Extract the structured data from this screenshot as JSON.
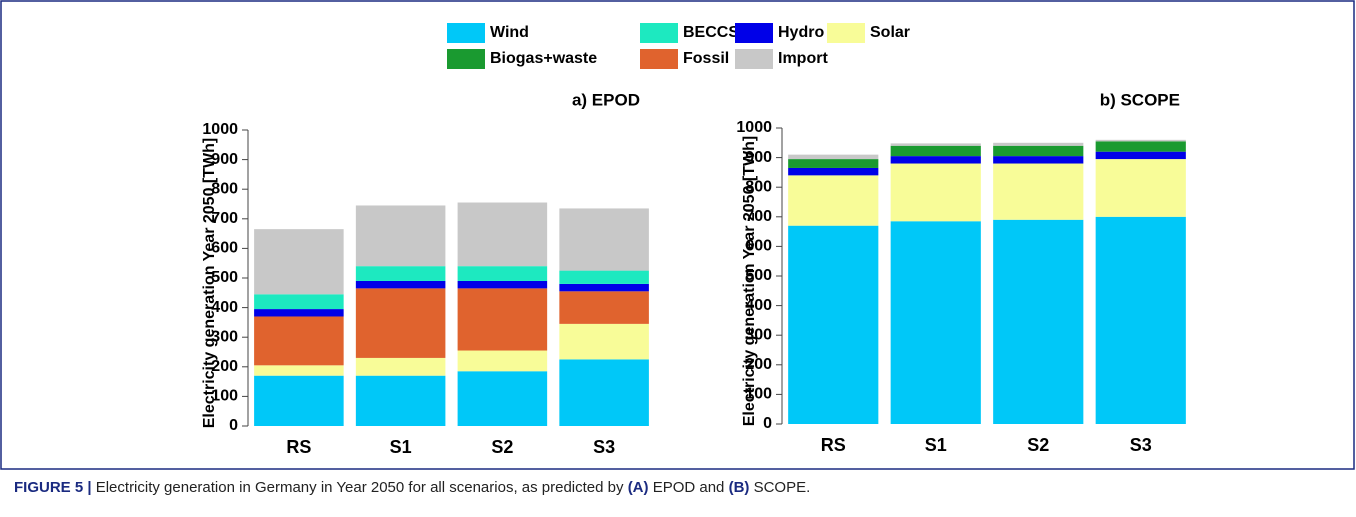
{
  "chart_data": [
    {
      "type": "stacked-bar",
      "title": "a) EPOD",
      "y_label": "Electricity generation Year 2050 [TWh]",
      "categories": [
        "RS",
        "S1",
        "S2",
        "S3"
      ],
      "series": [
        {
          "name": "Wind",
          "color": "#00c8f8",
          "values": [
            170,
            170,
            185,
            225
          ]
        },
        {
          "name": "Solar",
          "color": "#f8fc98",
          "values": [
            35,
            60,
            70,
            120
          ]
        },
        {
          "name": "Fossil",
          "color": "#e0632e",
          "values": [
            165,
            235,
            210,
            110
          ]
        },
        {
          "name": "Hydro",
          "color": "#0000e8",
          "values": [
            25,
            25,
            25,
            25
          ]
        },
        {
          "name": "BECCS",
          "color": "#1de9c0",
          "values": [
            50,
            50,
            50,
            45
          ]
        },
        {
          "name": "Import",
          "color": "#c8c8c8",
          "values": [
            220,
            205,
            215,
            210
          ]
        }
      ],
      "ylim": [
        0,
        1000
      ],
      "yticks": [
        0,
        100,
        200,
        300,
        400,
        500,
        600,
        700,
        800,
        900,
        1000
      ]
    },
    {
      "type": "stacked-bar",
      "title": "b) SCOPE",
      "y_label": "Electricity generation Year 2050 [TWh]",
      "categories": [
        "RS",
        "S1",
        "S2",
        "S3"
      ],
      "series": [
        {
          "name": "Wind",
          "color": "#00c8f8",
          "values": [
            670,
            685,
            690,
            700
          ]
        },
        {
          "name": "Solar",
          "color": "#f8fc98",
          "values": [
            170,
            195,
            190,
            195
          ]
        },
        {
          "name": "Hydro",
          "color": "#0000e8",
          "values": [
            25,
            25,
            25,
            25
          ]
        },
        {
          "name": "Biogas+waste",
          "color": "#1a9a30",
          "values": [
            30,
            35,
            35,
            35
          ]
        },
        {
          "name": "Import",
          "color": "#c8c8c8",
          "values": [
            15,
            8,
            10,
            5
          ]
        }
      ],
      "ylim": [
        0,
        1000
      ],
      "yticks": [
        0,
        100,
        200,
        300,
        400,
        500,
        600,
        700,
        800,
        900,
        1000
      ]
    }
  ],
  "caption": {
    "label": "FIGURE 5 |",
    "parts": [
      "Electricity generation in Germany in Year 2050 for all scenarios, as predicted by",
      "(A)",
      "EPOD and",
      "(B)",
      "SCOPE."
    ]
  }
}
